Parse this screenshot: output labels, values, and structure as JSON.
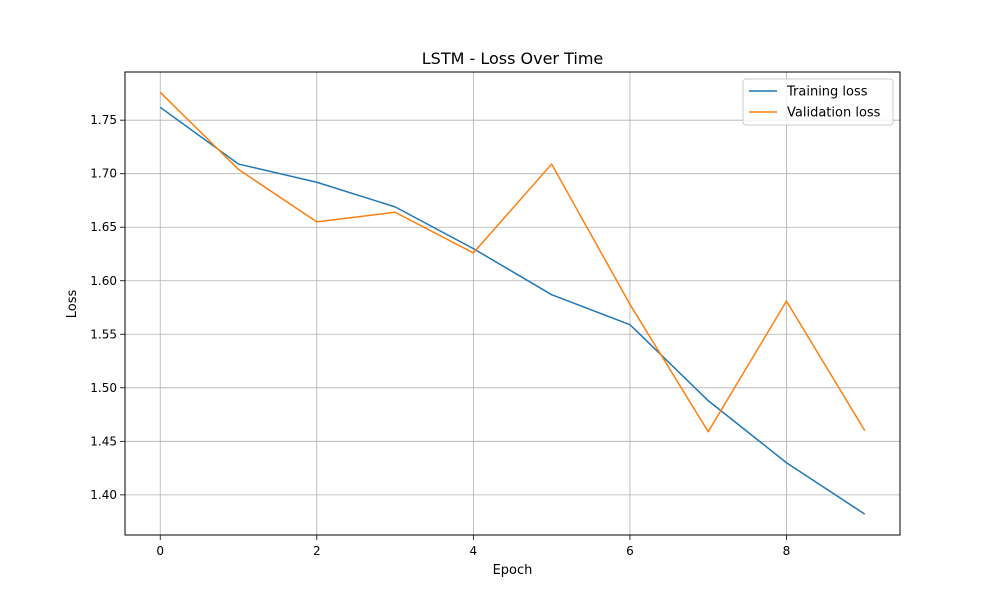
{
  "chart_data": {
    "type": "line",
    "title": "LSTM - Loss Over Time",
    "xlabel": "Epoch",
    "ylabel": "Loss",
    "x": [
      0,
      1,
      2,
      3,
      4,
      5,
      6,
      7,
      8,
      9
    ],
    "series": [
      {
        "name": "Training loss",
        "color": "#1f77b4",
        "values": [
          1.762,
          1.709,
          1.692,
          1.669,
          1.63,
          1.587,
          1.559,
          1.488,
          1.43,
          1.382
        ]
      },
      {
        "name": "Validation loss",
        "color": "#ff7f0e",
        "values": [
          1.776,
          1.704,
          1.655,
          1.664,
          1.626,
          1.709,
          1.578,
          1.459,
          1.581,
          1.46
        ]
      }
    ],
    "xlim": [
      -0.45,
      9.45
    ],
    "ylim": [
      1.3625,
      1.795
    ],
    "xticks": [
      0,
      2,
      4,
      6,
      8
    ],
    "yticks": [
      1.4,
      1.45,
      1.5,
      1.55,
      1.6,
      1.65,
      1.7,
      1.75
    ],
    "xtick_labels": [
      "0",
      "2",
      "4",
      "6",
      "8"
    ],
    "ytick_labels": [
      "1.40",
      "1.45",
      "1.50",
      "1.55",
      "1.60",
      "1.65",
      "1.70",
      "1.75"
    ],
    "grid": true,
    "legend_position": "top-right"
  }
}
